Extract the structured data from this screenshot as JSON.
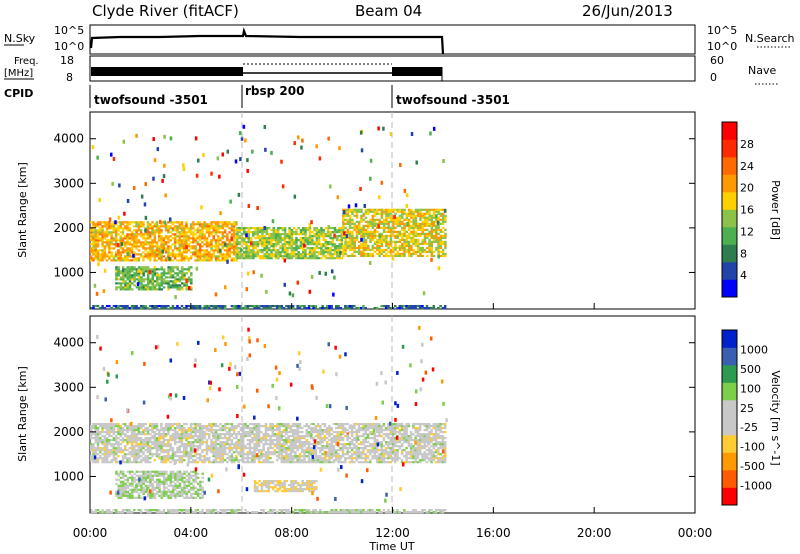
{
  "header": {
    "station": "Clyde River (fitACF)",
    "beam": "Beam 04",
    "date": "26/Jun/2013"
  },
  "panels": {
    "nsky": {
      "left_label": "N.Sky",
      "left_ticks": [
        "10^5",
        "10^0"
      ],
      "right_ticks": [
        "10^5",
        "10^0"
      ],
      "right_label": "N.Search"
    },
    "freq": {
      "left_label_1": "Freq.",
      "left_label_2": "[MHz]",
      "left_ticks": [
        "18",
        "8"
      ],
      "right_ticks": [
        "60",
        "0"
      ],
      "right_label": "Nave"
    },
    "cpid": {
      "left_label": "CPID",
      "segments": [
        "twofsound -3501",
        "rbsp 200",
        "twofsound -3501"
      ]
    }
  },
  "x_axis": {
    "label": "Time UT",
    "ticks": [
      "00:00",
      "04:00",
      "08:00",
      "12:00",
      "16:00",
      "20:00",
      "00:00"
    ]
  },
  "chart_data": [
    {
      "type": "heatmap",
      "ylabel": "Slant Range [km]",
      "y_ticks": [
        "4000",
        "3000",
        "2000",
        "1000"
      ],
      "ylim": [
        180,
        4600
      ],
      "xlim_hours": [
        0,
        24
      ],
      "colorbar": {
        "label": "Power [dB]",
        "ticks": [
          "28",
          "24",
          "20",
          "16",
          "12",
          "8",
          "4"
        ],
        "range": [
          0,
          30
        ],
        "colors": [
          "#0000ff",
          "#2244aa",
          "#2e7d4f",
          "#4caf50",
          "#8bc34a",
          "#ffd000",
          "#ff9900",
          "#ff6a00",
          "#ff2a00",
          "#ff0000"
        ]
      },
      "data_extent_hours": [
        0,
        14.1
      ],
      "bands": [
        {
          "t_start": 0.0,
          "t_end": 5.8,
          "range_low": 1250,
          "range_high": 2150,
          "value": 18
        },
        {
          "t_start": 5.8,
          "t_end": 10.0,
          "range_low": 1300,
          "range_high": 2000,
          "value": 14
        },
        {
          "t_start": 10.0,
          "t_end": 14.1,
          "range_low": 1350,
          "range_high": 2400,
          "value": 16
        },
        {
          "t_start": 0.0,
          "t_end": 14.1,
          "range_low": 180,
          "range_high": 260,
          "value": 6
        },
        {
          "t_start": 1.0,
          "t_end": 4.0,
          "range_low": 600,
          "range_high": 1100,
          "value": 12
        }
      ]
    },
    {
      "type": "heatmap",
      "ylabel": "Slant Range [km]",
      "y_ticks": [
        "4000",
        "3000",
        "2000",
        "1000"
      ],
      "ylim": [
        180,
        4600
      ],
      "xlim_hours": [
        0,
        24
      ],
      "colorbar": {
        "label": "Velocity [m s^-1]",
        "ticks": [
          "1000",
          "500",
          "100",
          "25",
          "-25",
          "-100",
          "-500",
          "-1000"
        ],
        "range": [
          -1000,
          1000
        ],
        "colors": [
          "#ff0000",
          "#ff5a00",
          "#ff9900",
          "#ffcc33",
          "#c8c8c8",
          "#c8c8c8",
          "#7ccf4a",
          "#2e9a4f",
          "#3a5fb0",
          "#0022cc"
        ]
      },
      "data_extent_hours": [
        0,
        14.1
      ],
      "bands": [
        {
          "t_start": 0.0,
          "t_end": 14.1,
          "range_low": 1300,
          "range_high": 2200,
          "value": 0
        },
        {
          "t_start": 1.0,
          "t_end": 4.5,
          "range_low": 500,
          "range_high": 1100,
          "value": 150
        },
        {
          "t_start": 6.5,
          "t_end": 9.0,
          "range_low": 650,
          "range_high": 900,
          "value": -150
        },
        {
          "t_start": 0.0,
          "t_end": 14.1,
          "range_low": 180,
          "range_high": 260,
          "value": 100
        }
      ]
    }
  ]
}
